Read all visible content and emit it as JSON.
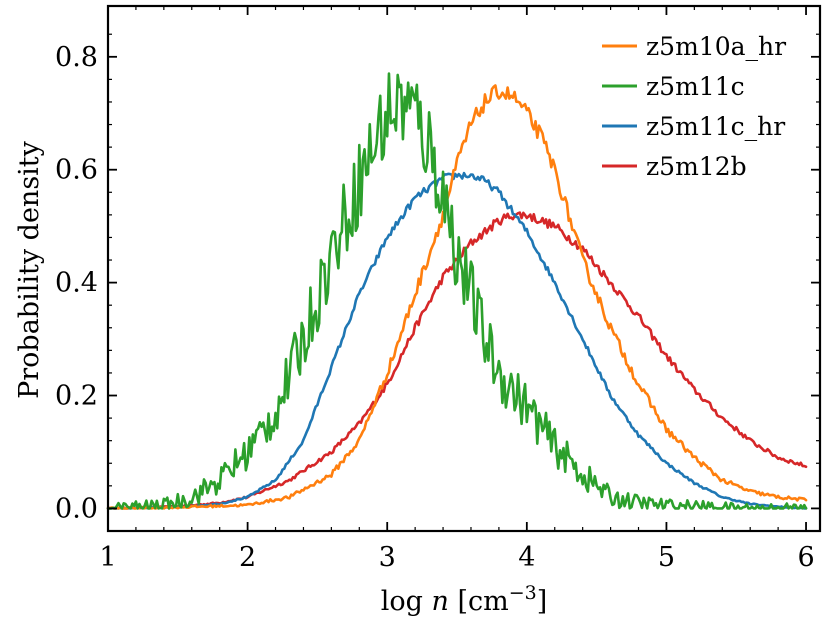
{
  "chart_data": {
    "type": "line",
    "title": "",
    "xlabel": "log n [cm⁻³]",
    "xlabel_parts": {
      "pre": "log ",
      "var": "n",
      "unit_open": " [cm",
      "exponent": "−3",
      "unit_close": "]"
    },
    "ylabel": "Probability density",
    "xlim": [
      1,
      6.1
    ],
    "ylim": [
      -0.04,
      0.89
    ],
    "xticks": [
      1,
      2,
      3,
      4,
      5,
      6
    ],
    "xtick_labels": [
      "1",
      "2",
      "3",
      "4",
      "5",
      "6"
    ],
    "yticks": [
      0.0,
      0.2,
      0.4,
      0.6,
      0.8
    ],
    "ytick_labels": [
      "0.0",
      "0.2",
      "0.4",
      "0.6",
      "0.8"
    ],
    "grid": false,
    "legend_position": "top-right",
    "series": [
      {
        "name": "z5m10a_hr",
        "name_parts": [
          "z5m10a",
          "hr"
        ],
        "color": "#ff7f0e",
        "noise": 0.012,
        "x": [
          1.0,
          1.5,
          2.0,
          2.3,
          2.6,
          2.8,
          3.0,
          3.2,
          3.4,
          3.5,
          3.6,
          3.7,
          3.8,
          3.9,
          4.0,
          4.1,
          4.2,
          4.3,
          4.4,
          4.6,
          4.8,
          5.0,
          5.2,
          5.4,
          5.6,
          5.8,
          6.0
        ],
        "y": [
          0.0,
          0.002,
          0.006,
          0.02,
          0.06,
          0.12,
          0.24,
          0.38,
          0.52,
          0.61,
          0.68,
          0.72,
          0.74,
          0.73,
          0.7,
          0.66,
          0.6,
          0.52,
          0.44,
          0.32,
          0.22,
          0.14,
          0.09,
          0.05,
          0.03,
          0.02,
          0.015
        ]
      },
      {
        "name": "z5m11c",
        "name_parts": [
          "z5m11c"
        ],
        "color": "#2ca02c",
        "noise": 0.07,
        "x": [
          1.0,
          1.4,
          1.6,
          1.8,
          2.0,
          2.2,
          2.4,
          2.6,
          2.8,
          3.0,
          3.1,
          3.2,
          3.3,
          3.4,
          3.5,
          3.6,
          3.7,
          3.8,
          4.0,
          4.2,
          4.4,
          4.5,
          4.6,
          4.8,
          5.0,
          5.5,
          6.0
        ],
        "y": [
          0.0,
          0.005,
          0.02,
          0.05,
          0.1,
          0.17,
          0.3,
          0.45,
          0.58,
          0.7,
          0.72,
          0.7,
          0.64,
          0.56,
          0.45,
          0.38,
          0.3,
          0.24,
          0.18,
          0.11,
          0.06,
          0.04,
          0.02,
          0.01,
          0.005,
          0.0,
          0.0
        ]
      },
      {
        "name": "z5m11c_hr",
        "name_parts": [
          "z5m11c",
          "hr"
        ],
        "color": "#1f77b4",
        "noise": 0.006,
        "x": [
          1.0,
          1.5,
          1.8,
          2.0,
          2.2,
          2.4,
          2.6,
          2.8,
          3.0,
          3.2,
          3.4,
          3.5,
          3.6,
          3.7,
          3.8,
          4.0,
          4.2,
          4.4,
          4.6,
          4.8,
          5.0,
          5.2,
          5.4,
          5.6,
          5.8,
          6.0
        ],
        "y": [
          0.0,
          0.002,
          0.008,
          0.02,
          0.05,
          0.12,
          0.25,
          0.38,
          0.48,
          0.55,
          0.585,
          0.59,
          0.59,
          0.58,
          0.56,
          0.49,
          0.4,
          0.3,
          0.2,
          0.13,
          0.08,
          0.045,
          0.02,
          0.008,
          0.003,
          0.0
        ]
      },
      {
        "name": "z5m12b",
        "name_parts": [
          "z5m12b"
        ],
        "color": "#d62728",
        "noise": 0.008,
        "x": [
          1.0,
          1.5,
          1.8,
          2.0,
          2.3,
          2.6,
          2.8,
          3.0,
          3.2,
          3.4,
          3.6,
          3.8,
          3.9,
          4.0,
          4.2,
          4.4,
          4.6,
          4.8,
          5.0,
          5.2,
          5.4,
          5.6,
          5.8,
          6.0
        ],
        "y": [
          0.0,
          0.003,
          0.01,
          0.02,
          0.05,
          0.1,
          0.15,
          0.22,
          0.32,
          0.41,
          0.47,
          0.51,
          0.52,
          0.52,
          0.5,
          0.46,
          0.4,
          0.34,
          0.27,
          0.21,
          0.16,
          0.12,
          0.09,
          0.075
        ]
      }
    ]
  }
}
